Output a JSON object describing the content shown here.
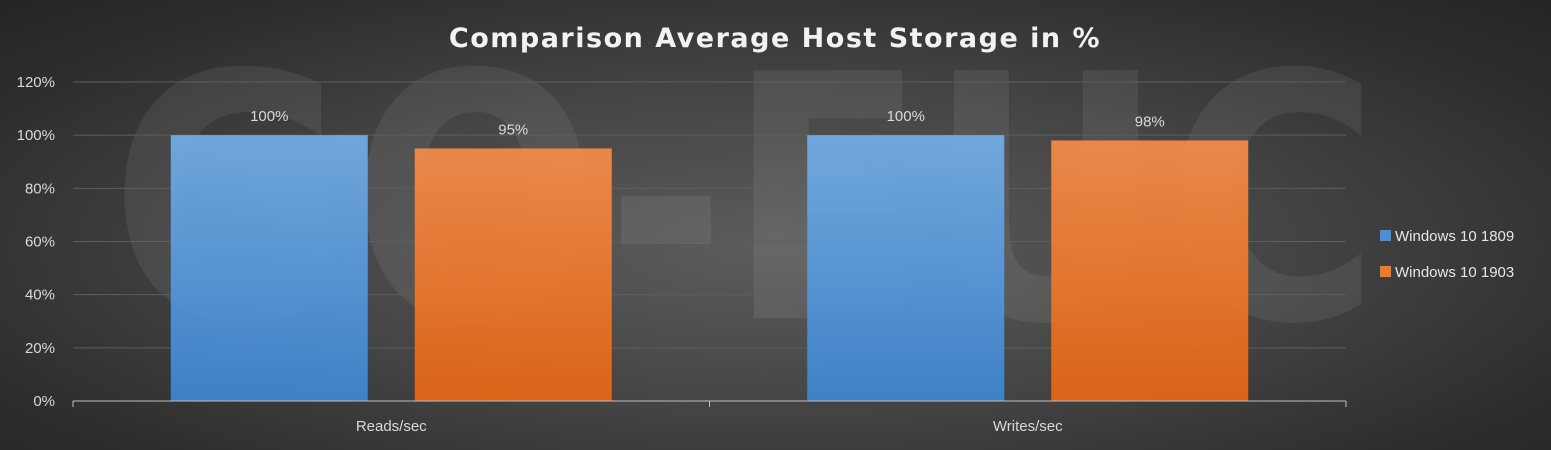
{
  "watermark": "GO-EUC",
  "colors": {
    "series_1809": "#4a90d9",
    "series_1903": "#f07a28",
    "grid": "#5e5e5e",
    "axis": "#bfbfbf"
  },
  "chart_data": {
    "type": "bar",
    "title": "Comparison Average Host Storage in %",
    "xlabel": "",
    "ylabel": "",
    "categories": [
      "Reads/sec",
      "Writes/sec"
    ],
    "series": [
      {
        "name": "Windows 10 1809",
        "values": [
          100,
          100
        ],
        "labels": [
          "100%",
          "100%"
        ]
      },
      {
        "name": "Windows 10 1903",
        "values": [
          95,
          98
        ],
        "labels": [
          "95%",
          "98%"
        ]
      }
    ],
    "ylim": [
      0,
      120
    ],
    "yticks": [
      "0%",
      "20%",
      "40%",
      "60%",
      "80%",
      "100%",
      "120%"
    ],
    "grid": true,
    "legend": "right"
  }
}
